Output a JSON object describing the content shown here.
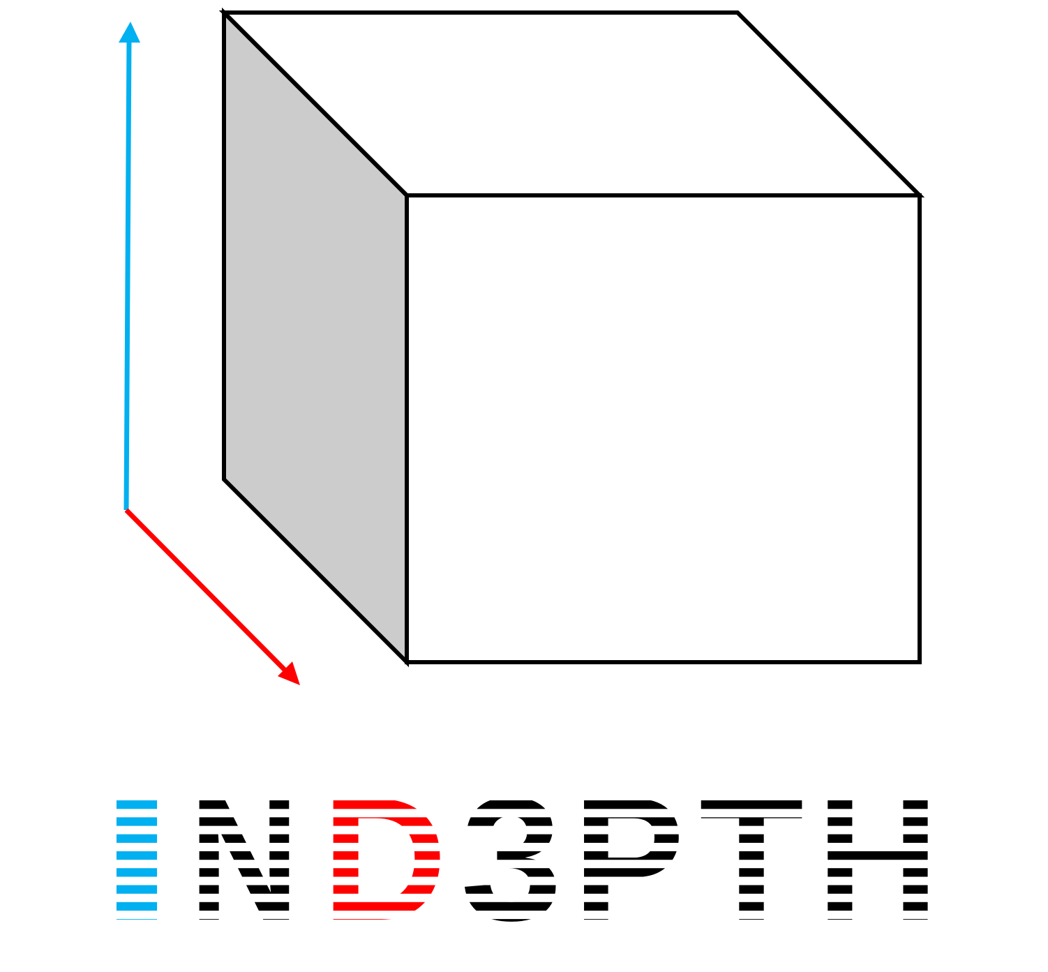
{
  "logo": {
    "wordmark": "IND3PTH",
    "letters": [
      {
        "char": "I",
        "color": "#00b0f0"
      },
      {
        "char": "N",
        "color": "#000000"
      },
      {
        "char": "D",
        "color": "#ff0000"
      },
      {
        "char": "3",
        "color": "#000000"
      },
      {
        "char": "P",
        "color": "#000000"
      },
      {
        "char": "T",
        "color": "#000000"
      },
      {
        "char": "H",
        "color": "#000000"
      }
    ]
  },
  "colors": {
    "vertical_arrow": "#00b0f0",
    "depth_arrow": "#ff0000",
    "cube_outline": "#000000",
    "cube_side_fill": "#cccccc",
    "cube_face_fill": "#ffffff",
    "background": "#ffffff"
  },
  "icons": {
    "cube": "cube-icon",
    "vertical_arrow": "arrow-up-icon",
    "depth_arrow": "arrow-down-right-icon"
  }
}
